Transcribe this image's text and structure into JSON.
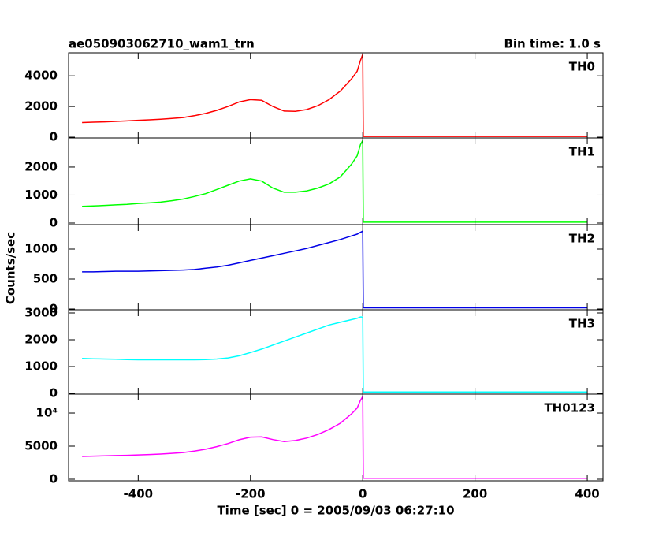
{
  "title": "ae050903062710_wam1_trn",
  "bin_time": "Bin time: 1.0 s",
  "xlabel": "Time [sec] 0 = 2005/09/03 06:27:10",
  "ylabel": "Counts/sec",
  "chart_data": [
    {
      "type": "line",
      "name": "TH0",
      "color": "#ff0000",
      "x": [
        -500,
        -480,
        -460,
        -440,
        -420,
        -400,
        -380,
        -360,
        -340,
        -320,
        -300,
        -280,
        -260,
        -240,
        -220,
        -200,
        -180,
        -160,
        -140,
        -120,
        -100,
        -80,
        -60,
        -40,
        -20,
        -10,
        -4,
        0,
        1,
        100,
        200,
        300,
        400
      ],
      "values": [
        950,
        980,
        1000,
        1030,
        1060,
        1100,
        1130,
        1170,
        1220,
        1280,
        1400,
        1550,
        1750,
        2000,
        2300,
        2450,
        2400,
        2000,
        1700,
        1680,
        1800,
        2050,
        2450,
        3000,
        3800,
        4300,
        5000,
        5400,
        50,
        50,
        50,
        50,
        50
      ],
      "xlim": [
        -524,
        428
      ],
      "xticks": [
        -400,
        -200,
        0,
        200,
        400
      ],
      "ylim": [
        -50,
        5500
      ],
      "yticks": [
        0,
        2000,
        4000
      ]
    },
    {
      "type": "line",
      "name": "TH1",
      "color": "#00ff00",
      "x": [
        -500,
        -480,
        -460,
        -440,
        -420,
        -400,
        -380,
        -360,
        -340,
        -320,
        -300,
        -280,
        -260,
        -240,
        -220,
        -200,
        -180,
        -160,
        -140,
        -120,
        -100,
        -80,
        -60,
        -40,
        -20,
        -10,
        -4,
        0,
        1,
        100,
        200,
        300,
        400
      ],
      "values": [
        600,
        610,
        630,
        650,
        670,
        700,
        720,
        750,
        800,
        860,
        950,
        1050,
        1200,
        1350,
        1500,
        1580,
        1500,
        1250,
        1100,
        1100,
        1150,
        1250,
        1400,
        1650,
        2100,
        2400,
        2800,
        2950,
        30,
        30,
        30,
        30,
        30
      ],
      "xlim": [
        -524,
        428
      ],
      "xticks": [
        -400,
        -200,
        0,
        200,
        400
      ],
      "ylim": [
        -56,
        3040
      ],
      "yticks": [
        0,
        1000,
        2000
      ]
    },
    {
      "type": "line",
      "name": "TH2",
      "color": "#0000e6",
      "x": [
        -500,
        -480,
        -460,
        -440,
        -420,
        -400,
        -380,
        -360,
        -340,
        -320,
        -300,
        -280,
        -260,
        -240,
        -220,
        -200,
        -180,
        -160,
        -140,
        -120,
        -100,
        -80,
        -60,
        -40,
        -20,
        -10,
        -4,
        0,
        1,
        100,
        200,
        300,
        400
      ],
      "values": [
        620,
        620,
        625,
        630,
        630,
        630,
        635,
        640,
        645,
        650,
        660,
        680,
        700,
        730,
        770,
        810,
        850,
        890,
        930,
        970,
        1010,
        1060,
        1110,
        1160,
        1220,
        1250,
        1280,
        1300,
        20,
        20,
        20,
        20,
        20
      ],
      "xlim": [
        -524,
        428
      ],
      "xticks": [
        -400,
        -200,
        0,
        200,
        400
      ],
      "ylim": [
        -13,
        1408
      ],
      "yticks": [
        0,
        500,
        1000
      ]
    },
    {
      "type": "line",
      "name": "TH3",
      "color": "#00ffff",
      "x": [
        -500,
        -480,
        -460,
        -440,
        -420,
        -400,
        -380,
        -360,
        -340,
        -320,
        -300,
        -280,
        -260,
        -240,
        -220,
        -200,
        -180,
        -160,
        -140,
        -120,
        -100,
        -80,
        -60,
        -40,
        -20,
        -10,
        -4,
        0,
        1,
        100,
        200,
        300,
        400
      ],
      "values": [
        1300,
        1290,
        1280,
        1270,
        1260,
        1250,
        1250,
        1250,
        1250,
        1250,
        1250,
        1260,
        1280,
        1320,
        1400,
        1520,
        1650,
        1800,
        1950,
        2100,
        2250,
        2400,
        2550,
        2650,
        2750,
        2800,
        2850,
        2850,
        50,
        50,
        50,
        50,
        50
      ],
      "xlim": [
        -524,
        428
      ],
      "xticks": [
        -400,
        -200,
        0,
        200,
        400
      ],
      "ylim": [
        -29,
        3118
      ],
      "yticks": [
        0,
        1000,
        2000,
        3000
      ]
    },
    {
      "type": "line",
      "name": "TH0123",
      "color": "#ff00ff",
      "x": [
        -500,
        -480,
        -460,
        -440,
        -420,
        -400,
        -380,
        -360,
        -340,
        -320,
        -300,
        -280,
        -260,
        -240,
        -220,
        -200,
        -180,
        -160,
        -140,
        -120,
        -100,
        -80,
        -60,
        -40,
        -20,
        -10,
        -4,
        0,
        1,
        100,
        200,
        300,
        400
      ],
      "values": [
        3450,
        3500,
        3540,
        3580,
        3620,
        3680,
        3740,
        3810,
        3920,
        4040,
        4260,
        4540,
        4930,
        5400,
        5970,
        6360,
        6400,
        5990,
        5680,
        5850,
        6210,
        6760,
        7510,
        8460,
        9870,
        10750,
        11930,
        12500,
        150,
        150,
        150,
        150,
        150
      ],
      "xlim": [
        -524,
        428
      ],
      "xticks": [
        -400,
        -200,
        0,
        200,
        400
      ],
      "ylim": [
        -238,
        12860
      ],
      "yticks": [
        0,
        5000,
        {
          "value": 10000,
          "label": "10⁴"
        }
      ]
    }
  ]
}
